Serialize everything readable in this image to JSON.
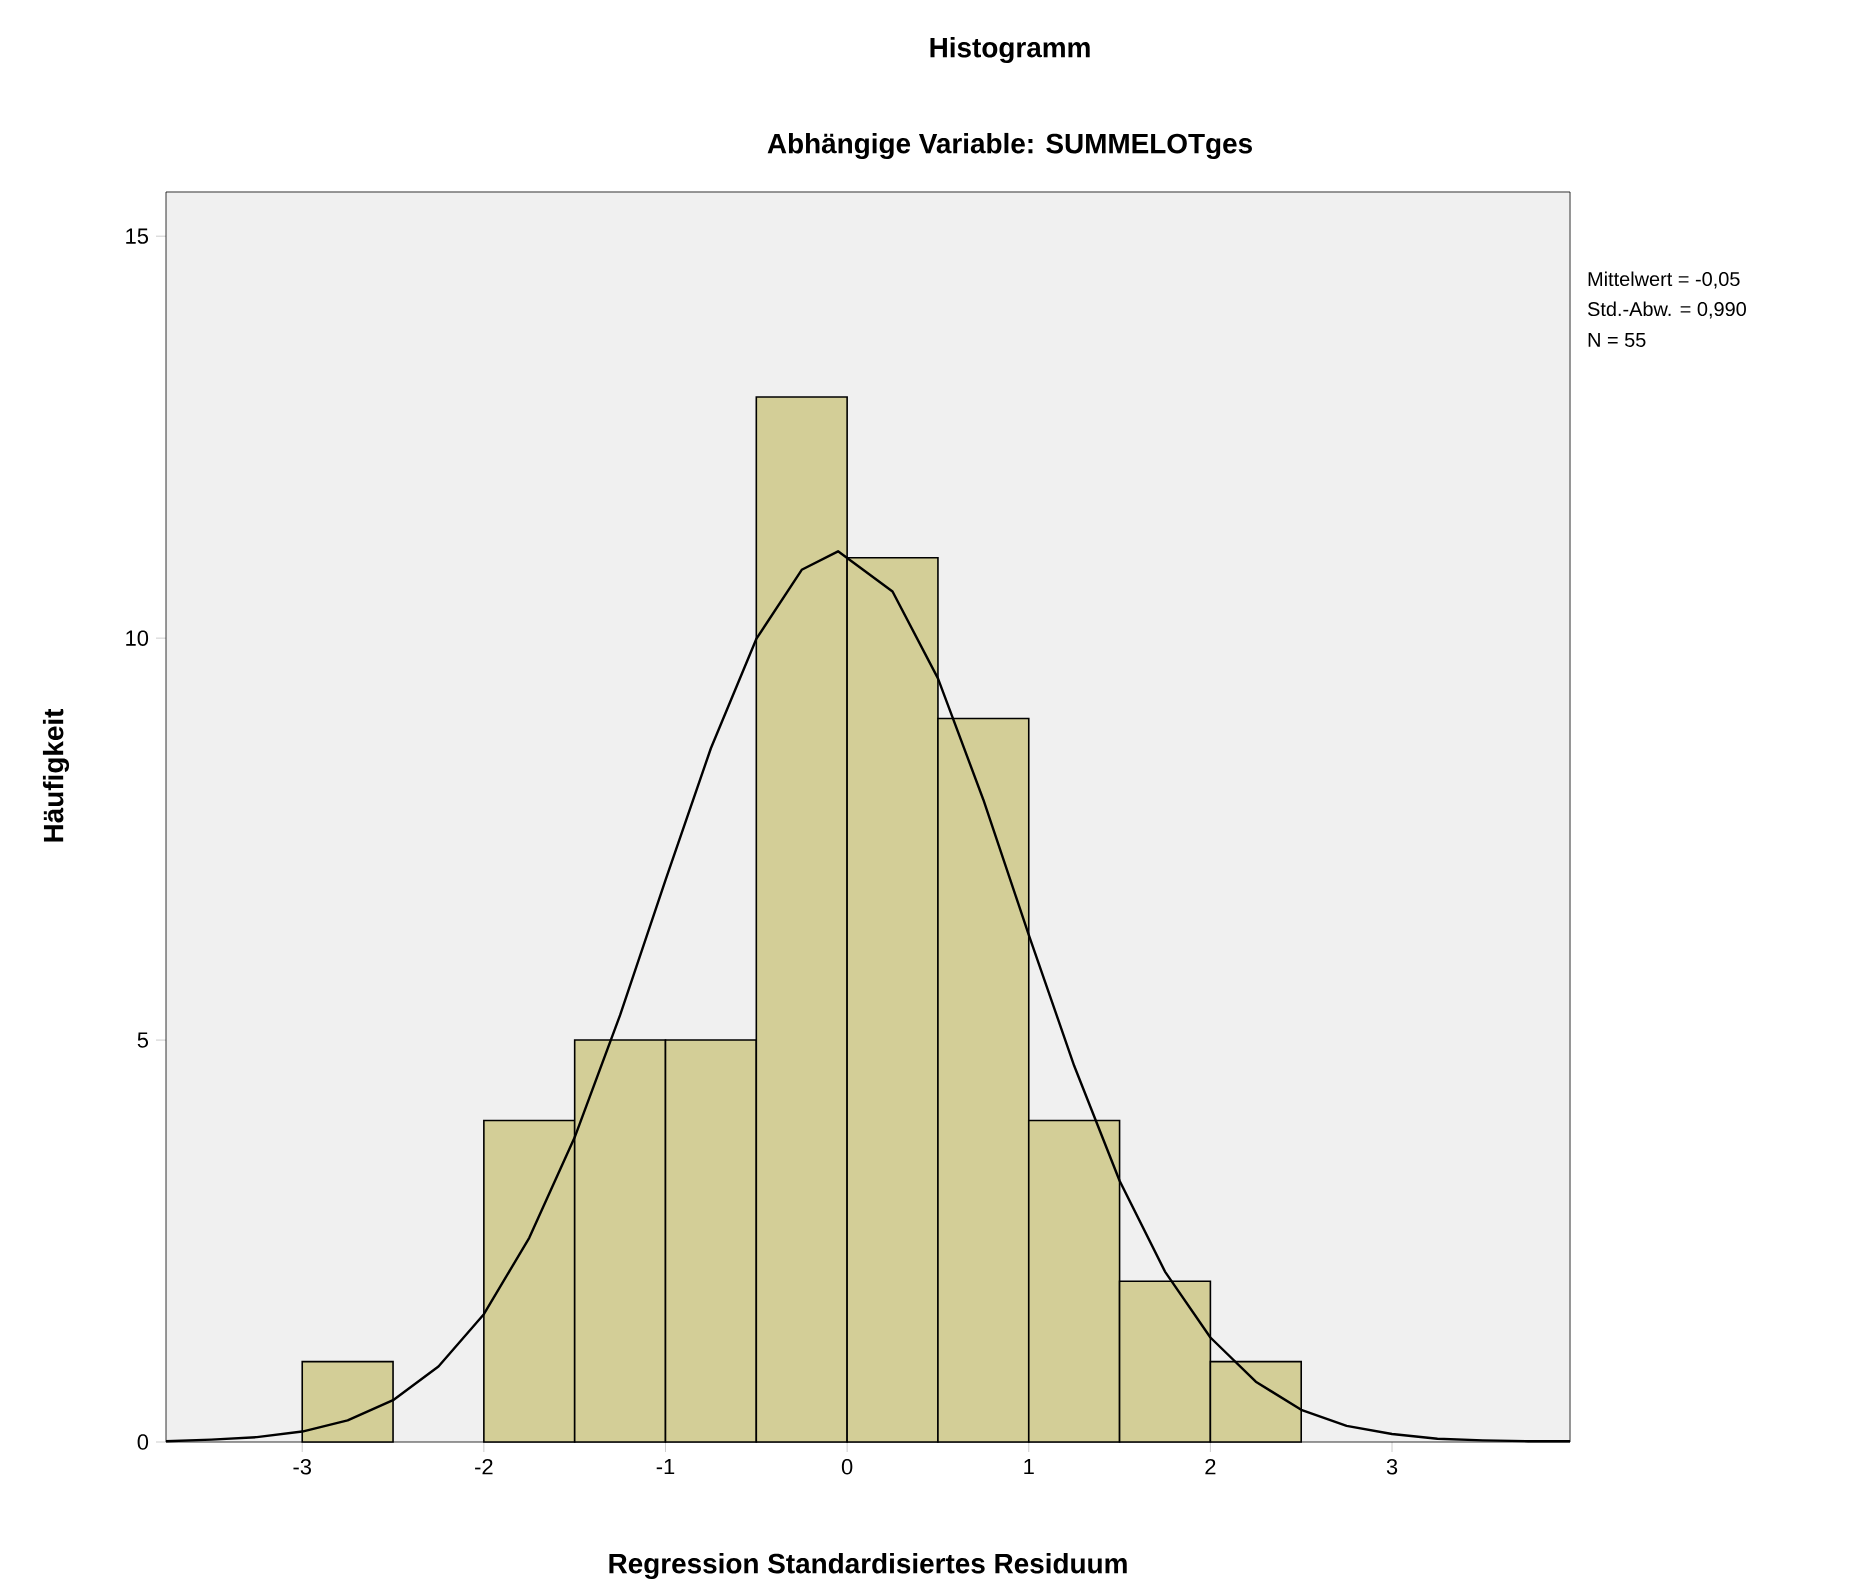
{
  "chart_data": {
    "type": "histogram",
    "title": "Histogramm",
    "subtitle": "Abhängige Variable: SUMMELOTges",
    "xlabel": "Regression Standardisiertes Residuum",
    "ylabel": "Häufigkeit",
    "bins": [
      -3,
      -2.5,
      -2,
      -1.5,
      -1,
      -0.5,
      0,
      0.5,
      1,
      1.5,
      2,
      2.5
    ],
    "values": [
      1,
      0,
      4,
      5,
      5,
      13,
      11,
      9,
      4,
      2,
      1
    ],
    "color": "#d3ce97",
    "series": [
      {
        "type": "line",
        "color": "#000000",
        "x": [
          -3.75,
          -3.5,
          -3.25,
          -3,
          -2.75,
          -2.5,
          -2.25,
          -2,
          -1.75,
          -1.5,
          -1.25,
          -1,
          -0.75,
          -0.5,
          -0.25,
          -0.05,
          0.25,
          0.5,
          0.75,
          1,
          1.25,
          1.5,
          1.75,
          2,
          2.25,
          2.5,
          2.75,
          3,
          3.25,
          3.5,
          3.75,
          3.98
        ],
        "values": [
          0.01,
          0.03,
          0.06,
          0.13,
          0.27,
          0.52,
          0.94,
          1.59,
          2.54,
          3.79,
          5.31,
          6.99,
          8.63,
          9.99,
          10.85,
          11.08,
          10.58,
          9.5,
          7.99,
          6.31,
          4.68,
          3.25,
          2.12,
          1.3,
          0.75,
          0.4,
          0.2,
          0.1,
          0.04,
          0.02,
          0.01,
          0.01
        ]
      }
    ],
    "xlim": [
      -3.75,
      3.98
    ],
    "ylim": [
      0,
      15.55
    ],
    "xticks": [
      -3,
      -2,
      -1,
      0,
      1,
      2,
      3
    ],
    "yticks": [
      0,
      5,
      10,
      15
    ],
    "annotations": [
      "Mittelwert = -0,05",
      "Std.-Abw. = 0,990",
      "N = 55"
    ]
  }
}
